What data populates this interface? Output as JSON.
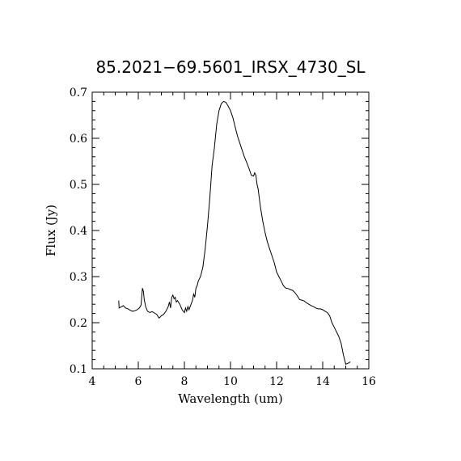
{
  "chart_data": {
    "type": "line",
    "title": "85.2021−69.5601_IRSX_4730_SL",
    "xlabel": "Wavelength (um)",
    "ylabel": "Flux (Jy)",
    "xlim": [
      4,
      16
    ],
    "ylim": [
      0.1,
      0.7
    ],
    "x_ticks": [
      "4",
      "6",
      "8",
      "10",
      "12",
      "14",
      "16"
    ],
    "y_ticks": [
      "0.1",
      "0.2",
      "0.3",
      "0.4",
      "0.5",
      "0.6",
      "0.7"
    ],
    "grid": false,
    "line_color": "#000000",
    "series": [
      {
        "x": [
          5.15,
          5.17,
          5.25,
          5.35,
          5.45,
          5.55,
          5.65,
          5.75,
          5.85,
          5.95,
          6.05,
          6.12,
          6.18,
          6.22,
          6.26,
          6.32,
          6.4,
          6.5,
          6.6,
          6.7,
          6.8,
          6.9,
          7.0,
          7.1,
          7.2,
          7.3,
          7.35,
          7.4,
          7.45,
          7.5,
          7.55,
          7.6,
          7.65,
          7.7,
          7.8,
          7.9,
          8.0,
          8.05,
          8.1,
          8.15,
          8.2,
          8.3,
          8.35,
          8.4,
          8.45,
          8.5,
          8.55,
          8.6,
          8.7,
          8.8,
          8.9,
          9.0,
          9.1,
          9.2,
          9.3,
          9.4,
          9.5,
          9.6,
          9.7,
          9.8,
          9.9,
          10.0,
          10.1,
          10.2,
          10.3,
          10.4,
          10.5,
          10.6,
          10.7,
          10.8,
          10.9,
          11.0,
          11.05,
          11.1,
          11.15,
          11.2,
          11.25,
          11.3,
          11.4,
          11.5,
          11.6,
          11.7,
          11.8,
          11.9,
          12.0,
          12.1,
          12.2,
          12.3,
          12.4,
          12.5,
          12.6,
          12.7,
          12.8,
          12.9,
          13.0,
          13.1,
          13.2,
          13.3,
          13.4,
          13.5,
          13.6,
          13.7,
          13.8,
          13.9,
          14.0,
          14.1,
          14.2,
          14.3,
          14.4,
          14.5,
          14.6,
          14.7,
          14.8,
          14.9,
          15.0,
          15.1,
          15.2
        ],
        "y": [
          0.248,
          0.232,
          0.234,
          0.237,
          0.232,
          0.23,
          0.227,
          0.225,
          0.226,
          0.228,
          0.232,
          0.238,
          0.275,
          0.268,
          0.25,
          0.235,
          0.225,
          0.222,
          0.224,
          0.221,
          0.218,
          0.21,
          0.215,
          0.218,
          0.225,
          0.235,
          0.245,
          0.232,
          0.255,
          0.26,
          0.252,
          0.255,
          0.245,
          0.248,
          0.24,
          0.228,
          0.222,
          0.232,
          0.225,
          0.235,
          0.228,
          0.242,
          0.248,
          0.262,
          0.255,
          0.275,
          0.28,
          0.29,
          0.3,
          0.32,
          0.36,
          0.41,
          0.47,
          0.54,
          0.58,
          0.63,
          0.66,
          0.675,
          0.68,
          0.678,
          0.67,
          0.66,
          0.645,
          0.625,
          0.605,
          0.59,
          0.575,
          0.56,
          0.548,
          0.535,
          0.52,
          0.518,
          0.525,
          0.52,
          0.5,
          0.49,
          0.47,
          0.45,
          0.42,
          0.395,
          0.375,
          0.36,
          0.345,
          0.33,
          0.31,
          0.3,
          0.29,
          0.28,
          0.275,
          0.274,
          0.272,
          0.27,
          0.265,
          0.258,
          0.25,
          0.249,
          0.247,
          0.243,
          0.24,
          0.237,
          0.235,
          0.232,
          0.23,
          0.23,
          0.228,
          0.225,
          0.222,
          0.215,
          0.2,
          0.19,
          0.18,
          0.17,
          0.155,
          0.13,
          0.11,
          0.112,
          0.115
        ]
      }
    ]
  }
}
